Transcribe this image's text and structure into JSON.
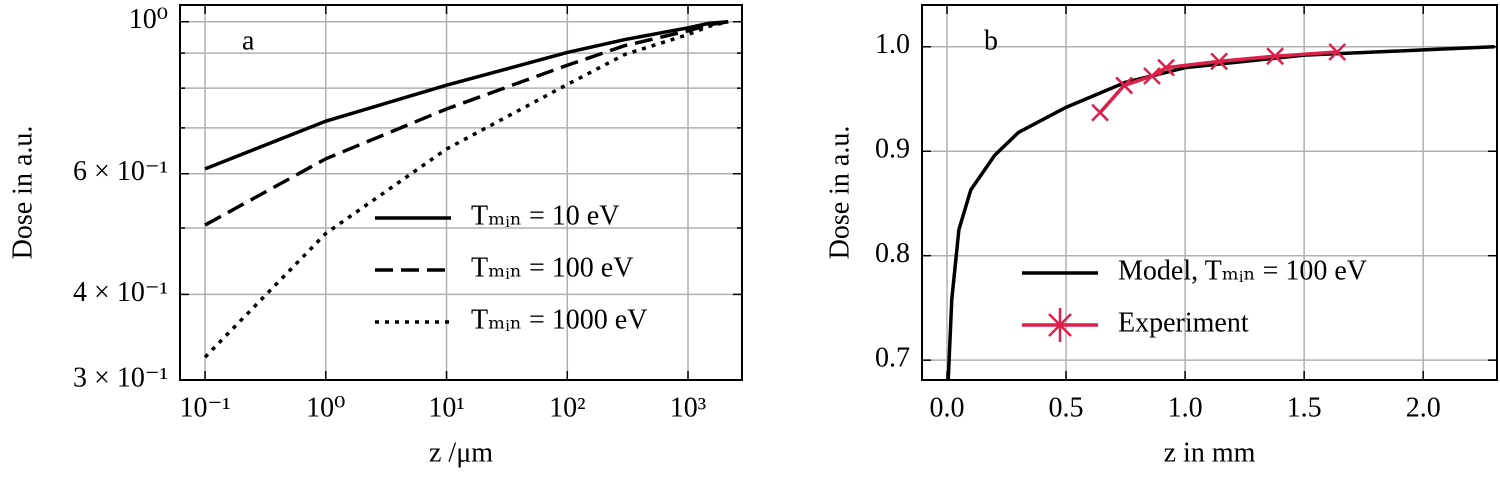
{
  "chart_data": [
    {
      "type": "line",
      "panel_label": "a",
      "xlabel": "z /μm",
      "ylabel": "Dose in a.u.",
      "xscale": "log",
      "yscale": "log",
      "xlim": [
        0.062,
        2800
      ],
      "ylim": [
        0.3,
        1.058
      ],
      "xticks": [
        {
          "value": 0.1,
          "label": "10⁻¹"
        },
        {
          "value": 1,
          "label": "10⁰"
        },
        {
          "value": 10,
          "label": "10¹"
        },
        {
          "value": 100,
          "label": "10²"
        },
        {
          "value": 1000,
          "label": "10³"
        }
      ],
      "yticks": [
        {
          "value": 0.3,
          "label": "3 × 10⁻¹"
        },
        {
          "value": 0.4,
          "label": "4 × 10⁻¹"
        },
        {
          "value": 0.6,
          "label": "6 × 10⁻¹"
        },
        {
          "value": 1,
          "label": "10⁰"
        }
      ],
      "yminor_ticks": [
        0.5,
        0.7,
        0.8,
        0.9
      ],
      "grid": true,
      "legend": "lower right",
      "series": [
        {
          "name": "Tₘᵢₙ = 10 eV",
          "color": "#000000",
          "linestyle": "solid",
          "x": [
            0.1,
            1,
            10,
            100,
            300,
            1000,
            1500,
            2150
          ],
          "values": [
            0.61,
            0.716,
            0.808,
            0.902,
            0.942,
            0.98,
            0.995,
            1.0
          ]
        },
        {
          "name": "Tₘᵢₙ = 100 eV",
          "color": "#000000",
          "linestyle": "dashed",
          "x": [
            0.1,
            1,
            10,
            100,
            300,
            1000,
            1500,
            2150
          ],
          "values": [
            0.505,
            0.631,
            0.746,
            0.864,
            0.923,
            0.97,
            0.99,
            1.0
          ]
        },
        {
          "name": "Tₘᵢₙ = 1000 eV",
          "color": "#000000",
          "linestyle": "dotted",
          "x": [
            0.1,
            1,
            10,
            100,
            300,
            1000,
            1500,
            2150
          ],
          "values": [
            0.324,
            0.491,
            0.652,
            0.81,
            0.896,
            0.958,
            0.985,
            1.0
          ]
        }
      ]
    },
    {
      "type": "line",
      "panel_label": "b",
      "xlabel": "z in mm",
      "ylabel": "Dose in a.u.",
      "xscale": "linear",
      "yscale": "linear",
      "xlim": [
        -0.105,
        2.31
      ],
      "ylim": [
        0.681,
        1.04
      ],
      "xticks": [
        {
          "value": 0,
          "label": "0.0"
        },
        0.5,
        {
          "value": 1,
          "label": "1.0"
        },
        1.5,
        {
          "value": 2,
          "label": "2.0"
        }
      ],
      "yticks": [
        0.7,
        0.8,
        0.9,
        {
          "value": 1,
          "label": "1.0"
        }
      ],
      "grid": true,
      "legend": "lower right",
      "series": [
        {
          "name": "Model, Tₘᵢₙ = 100 eV",
          "color": "#000000",
          "linestyle": "solid",
          "x": [
            0.005,
            0.02,
            0.05,
            0.1,
            0.2,
            0.3,
            0.5,
            0.75,
            1.0,
            1.5,
            2.0,
            2.3
          ],
          "values": [
            0.68,
            0.758,
            0.825,
            0.863,
            0.896,
            0.918,
            0.942,
            0.966,
            0.98,
            0.992,
            0.997,
            1.0
          ]
        },
        {
          "name": "Experiment",
          "color": "#dc1f4b",
          "linestyle": "solid",
          "marker": "x",
          "x": [
            0.643,
            0.744,
            0.861,
            0.92,
            1.143,
            1.378,
            1.639
          ],
          "values": [
            0.937,
            0.963,
            0.972,
            0.98,
            0.986,
            0.991,
            0.995
          ]
        }
      ]
    }
  ]
}
